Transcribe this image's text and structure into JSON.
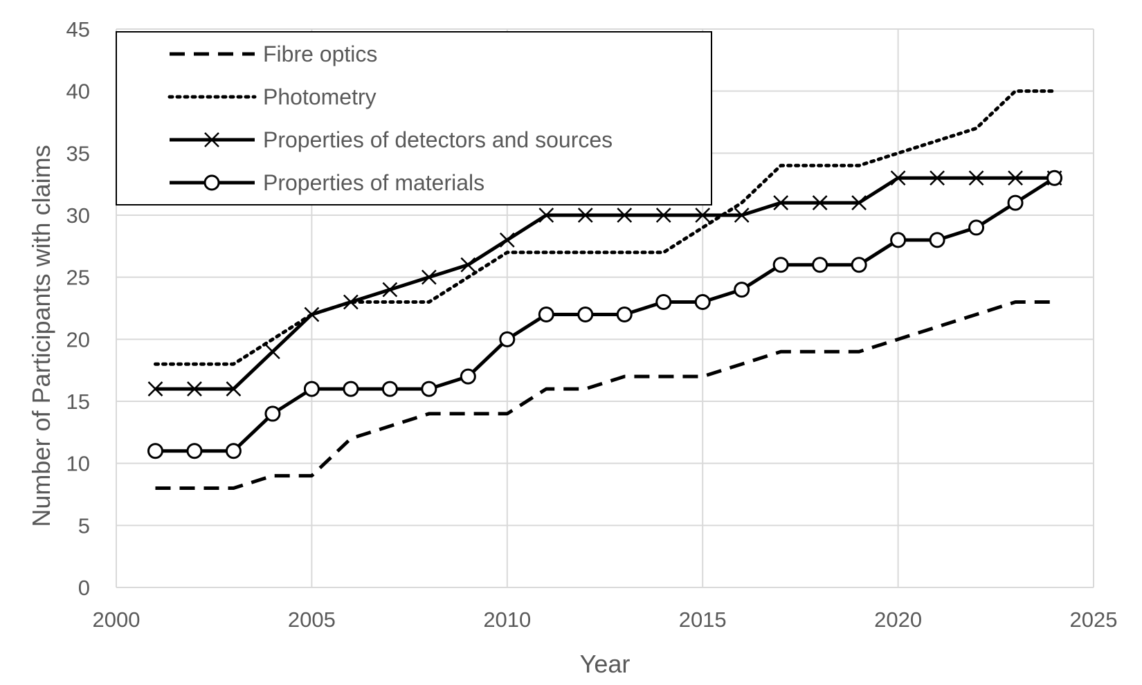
{
  "chart_data": {
    "type": "line",
    "xlabel": "Year",
    "ylabel": "Number of Participants with claims",
    "xlim": [
      2000,
      2025
    ],
    "ylim": [
      0,
      45
    ],
    "x_ticks": [
      2000,
      2005,
      2010,
      2015,
      2020,
      2025
    ],
    "y_ticks": [
      0,
      5,
      10,
      15,
      20,
      25,
      30,
      35,
      40,
      45
    ],
    "grid": true,
    "legend_position": "top-left",
    "x": [
      2001,
      2002,
      2003,
      2004,
      2005,
      2006,
      2007,
      2008,
      2009,
      2010,
      2011,
      2012,
      2013,
      2014,
      2015,
      2016,
      2017,
      2018,
      2019,
      2020,
      2021,
      2022,
      2023,
      2024
    ],
    "series": [
      {
        "name": "Fibre optics",
        "style": "dashed",
        "marker": "none",
        "color": "#000000",
        "values": [
          8,
          8,
          8,
          9,
          9,
          12,
          13,
          14,
          14,
          14,
          16,
          16,
          17,
          17,
          17,
          18,
          19,
          19,
          19,
          20,
          21,
          22,
          23,
          23
        ]
      },
      {
        "name": "Photometry",
        "style": "dotted",
        "marker": "none",
        "color": "#000000",
        "values": [
          18,
          18,
          18,
          20,
          22,
          23,
          23,
          23,
          25,
          27,
          27,
          27,
          27,
          27,
          29,
          31,
          34,
          34,
          34,
          35,
          36,
          37,
          40,
          40
        ]
      },
      {
        "name": "Properties of detectors and sources",
        "style": "solid",
        "marker": "x",
        "color": "#000000",
        "values": [
          16,
          16,
          16,
          19,
          22,
          23,
          24,
          25,
          26,
          28,
          30,
          30,
          30,
          30,
          30,
          30,
          31,
          31,
          31,
          33,
          33,
          33,
          33,
          33
        ]
      },
      {
        "name": "Properties of materials",
        "style": "solid",
        "marker": "circle",
        "color": "#000000",
        "values": [
          11,
          11,
          11,
          14,
          16,
          16,
          16,
          16,
          17,
          20,
          22,
          22,
          22,
          23,
          23,
          24,
          26,
          26,
          26,
          28,
          28,
          29,
          31,
          33
        ]
      }
    ]
  }
}
